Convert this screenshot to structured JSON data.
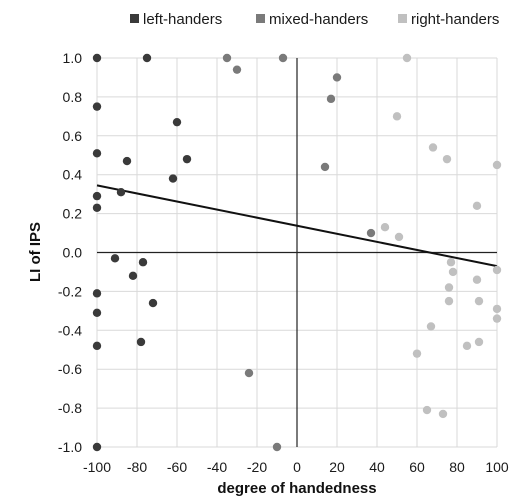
{
  "chart_data": {
    "type": "scatter",
    "xlabel": "degree of handedness",
    "ylabel": "LI of IPS",
    "xlim": [
      -100,
      100
    ],
    "ylim": [
      -1.0,
      1.0
    ],
    "x_ticks": [
      "-100",
      "-80",
      "-60",
      "-40",
      "-20",
      "0",
      "20",
      "40",
      "60",
      "80",
      "100"
    ],
    "y_ticks": [
      "1.0",
      "0.8",
      "0.6",
      "0.4",
      "0.2",
      "0.0",
      "-0.2",
      "-0.4",
      "-0.6",
      "-0.8",
      "-1.0"
    ],
    "grid": true,
    "legend_position": "top",
    "series": [
      {
        "name": "left-handers",
        "color": "#3a3a3a",
        "points": [
          [
            -100,
            1.0
          ],
          [
            -75,
            1.0
          ],
          [
            -100,
            0.75
          ],
          [
            -60,
            0.67
          ],
          [
            -100,
            0.51
          ],
          [
            -85,
            0.47
          ],
          [
            -55,
            0.48
          ],
          [
            -62,
            0.38
          ],
          [
            -88,
            0.31
          ],
          [
            -100,
            0.29
          ],
          [
            -100,
            0.23
          ],
          [
            -91,
            -0.03
          ],
          [
            -77,
            -0.05
          ],
          [
            -82,
            -0.12
          ],
          [
            -72,
            -0.26
          ],
          [
            -100,
            -0.21
          ],
          [
            -100,
            -0.31
          ],
          [
            -78,
            -0.46
          ],
          [
            -100,
            -0.48
          ],
          [
            -100,
            -1.0
          ]
        ]
      },
      {
        "name": "mixed-handers",
        "color": "#7a7a7a",
        "points": [
          [
            -35,
            1.0
          ],
          [
            -7,
            1.0
          ],
          [
            -30,
            0.94
          ],
          [
            20,
            0.9
          ],
          [
            17,
            0.79
          ],
          [
            14,
            0.44
          ],
          [
            37,
            0.1
          ],
          [
            -24,
            -0.62
          ],
          [
            -10,
            -1.0
          ]
        ]
      },
      {
        "name": "right-handers",
        "color": "#c0c0c0",
        "points": [
          [
            55,
            1.0
          ],
          [
            50,
            0.7
          ],
          [
            68,
            0.54
          ],
          [
            75,
            0.48
          ],
          [
            100,
            0.45
          ],
          [
            90,
            0.24
          ],
          [
            44,
            0.13
          ],
          [
            51,
            0.08
          ],
          [
            77,
            -0.05
          ],
          [
            78,
            -0.1
          ],
          [
            100,
            -0.09
          ],
          [
            90,
            -0.14
          ],
          [
            76,
            -0.18
          ],
          [
            76,
            -0.25
          ],
          [
            91,
            -0.25
          ],
          [
            100,
            -0.29
          ],
          [
            100,
            -0.34
          ],
          [
            67,
            -0.38
          ],
          [
            85,
            -0.48
          ],
          [
            91,
            -0.46
          ],
          [
            60,
            -0.52
          ],
          [
            65,
            -0.81
          ],
          [
            73,
            -0.83
          ]
        ]
      }
    ],
    "trend_line": {
      "color": "#111111",
      "points": [
        [
          -100,
          0.345
        ],
        [
          100,
          -0.07
        ]
      ]
    }
  }
}
